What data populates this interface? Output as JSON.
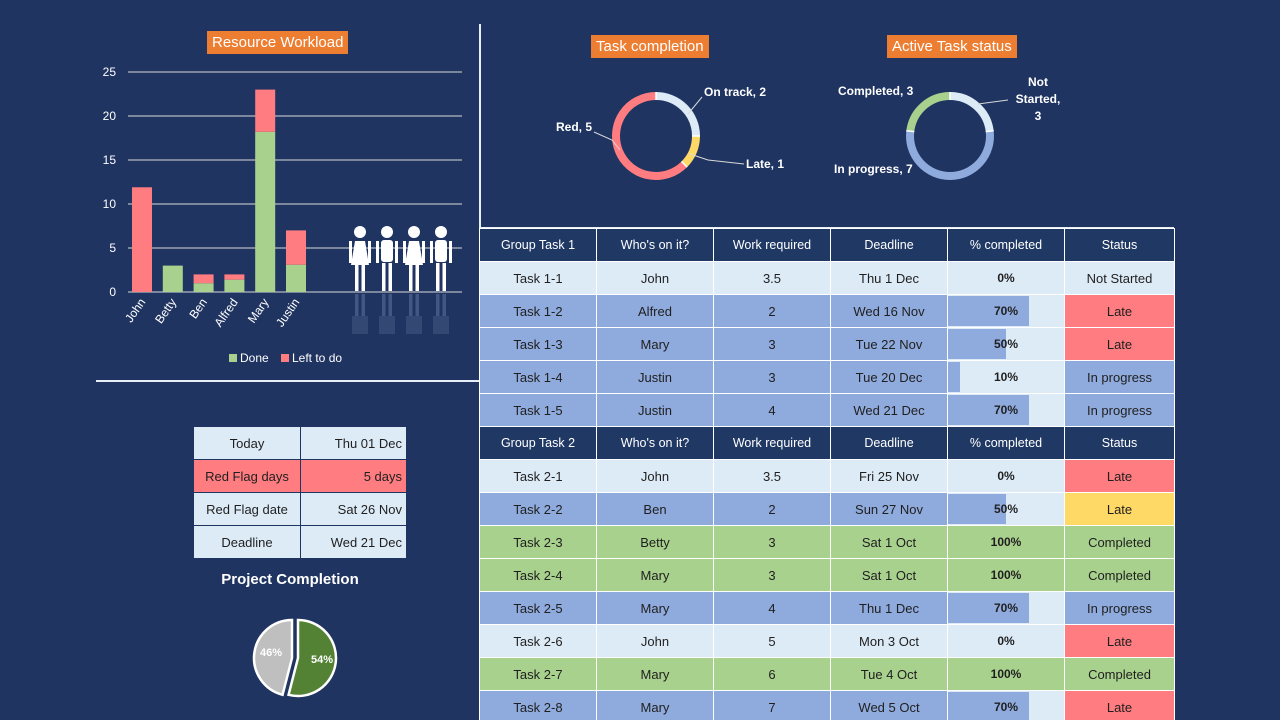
{
  "workload": {
    "title": "Resource Workload",
    "legend": [
      "Done",
      "Left to do"
    ],
    "yticks": [
      "0",
      "5",
      "10",
      "15",
      "20",
      "25"
    ]
  },
  "task_completion": {
    "title": "Task completion",
    "labels": {
      "on_track": "On track, 2",
      "late": "Late, 1",
      "red": "Red, 5"
    }
  },
  "active_status": {
    "title": "Active Task status",
    "labels": {
      "completed": "Completed, 3",
      "not_started_1": "Not",
      "not_started_2": "Started,",
      "not_started_3": "3",
      "in_progress": "In progress, 7"
    }
  },
  "info": {
    "rows": [
      {
        "label": "Today",
        "value": "Thu 01 Dec"
      },
      {
        "label": "Red Flag days",
        "value": "5 days"
      },
      {
        "label": "Red Flag date",
        "value": "Sat 26 Nov"
      },
      {
        "label": "Deadline",
        "value": "Wed 21 Dec"
      }
    ]
  },
  "project": {
    "title": "Project Completion",
    "done_label": "54%",
    "left_label": "46%"
  },
  "tasks": {
    "group1_header": [
      "Group Task 1",
      "Who's on it?",
      "Work required",
      "Deadline",
      "% completed",
      "Status"
    ],
    "group1": [
      {
        "task": "Task 1-1",
        "who": "John",
        "work": "3.5",
        "deadline": "Thu 1 Dec",
        "pct": "0%",
        "pct_value": 0,
        "status": "Not Started"
      },
      {
        "task": "Task 1-2",
        "who": "Alfred",
        "work": "2",
        "deadline": "Wed 16 Nov",
        "pct": "70%",
        "pct_value": 0.7,
        "status": "Late"
      },
      {
        "task": "Task 1-3",
        "who": "Mary",
        "work": "3",
        "deadline": "Tue 22 Nov",
        "pct": "50%",
        "pct_value": 0.5,
        "status": "Late"
      },
      {
        "task": "Task 1-4",
        "who": "Justin",
        "work": "3",
        "deadline": "Tue 20 Dec",
        "pct": "10%",
        "pct_value": 0.1,
        "status": "In progress"
      },
      {
        "task": "Task 1-5",
        "who": "Justin",
        "work": "4",
        "deadline": "Wed 21 Dec",
        "pct": "70%",
        "pct_value": 0.7,
        "status": "In progress"
      }
    ],
    "group2_header": [
      "Group Task 2",
      "Who's on it?",
      "Work required",
      "Deadline",
      "% completed",
      "Status"
    ],
    "group2": [
      {
        "task": "Task 2-1",
        "who": "John",
        "work": "3.5",
        "deadline": "Fri 25 Nov",
        "pct": "0%",
        "pct_value": 0,
        "status": "Late"
      },
      {
        "task": "Task 2-2",
        "who": "Ben",
        "work": "2",
        "deadline": "Sun 27 Nov",
        "pct": "50%",
        "pct_value": 0.5,
        "status": "Late"
      },
      {
        "task": "Task 2-3",
        "who": "Betty",
        "work": "3",
        "deadline": "Sat 1 Oct",
        "pct": "100%",
        "pct_value": 1,
        "status": "Completed"
      },
      {
        "task": "Task 2-4",
        "who": "Mary",
        "work": "3",
        "deadline": "Sat 1 Oct",
        "pct": "100%",
        "pct_value": 1,
        "status": "Completed"
      },
      {
        "task": "Task 2-5",
        "who": "Mary",
        "work": "4",
        "deadline": "Thu 1 Dec",
        "pct": "70%",
        "pct_value": 0.7,
        "status": "In progress"
      },
      {
        "task": "Task 2-6",
        "who": "John",
        "work": "5",
        "deadline": "Mon 3 Oct",
        "pct": "0%",
        "pct_value": 0,
        "status": "Late"
      },
      {
        "task": "Task 2-7",
        "who": "Mary",
        "work": "6",
        "deadline": "Tue 4 Oct",
        "pct": "100%",
        "pct_value": 1,
        "status": "Completed"
      },
      {
        "task": "Task 2-8",
        "who": "Mary",
        "work": "7",
        "deadline": "Wed 5 Oct",
        "pct": "70%",
        "pct_value": 0.7,
        "status": "Late"
      }
    ]
  },
  "colors": {
    "background": "#1f3461",
    "done": "#a9d18e",
    "left": "#ff7c80",
    "late_yellow": "#ffd966",
    "blue": "#8faadc",
    "light": "#ddebf7",
    "title_orange": "#ed7d31",
    "project_done": "#548235",
    "project_left": "#bfbfbf"
  },
  "chart_data": [
    {
      "type": "bar",
      "stacked": true,
      "title": "Resource Workload",
      "categories": [
        "John",
        "Betty",
        "Ben",
        "Alfred",
        "Mary",
        "Justin"
      ],
      "series": [
        {
          "name": "Done",
          "values": [
            0,
            3,
            1,
            1.4,
            18.2,
            3.1
          ]
        },
        {
          "name": "Left to do",
          "values": [
            11.9,
            0,
            1,
            0.6,
            4.8,
            3.9
          ]
        }
      ],
      "ylim": [
        0,
        25
      ],
      "grid": true,
      "legend": "bottom"
    },
    {
      "type": "pie",
      "donut": true,
      "title": "Task completion",
      "labels": [
        "On track",
        "Late",
        "Red"
      ],
      "values": [
        2,
        1,
        5
      ]
    },
    {
      "type": "pie",
      "donut": true,
      "title": "Active Task status",
      "labels": [
        "Completed",
        "Not Started",
        "In progress"
      ],
      "values": [
        3,
        3,
        7
      ]
    },
    {
      "type": "pie",
      "title": "Project Completion",
      "labels": [
        "Done",
        "Left"
      ],
      "values": [
        54,
        46
      ]
    }
  ]
}
